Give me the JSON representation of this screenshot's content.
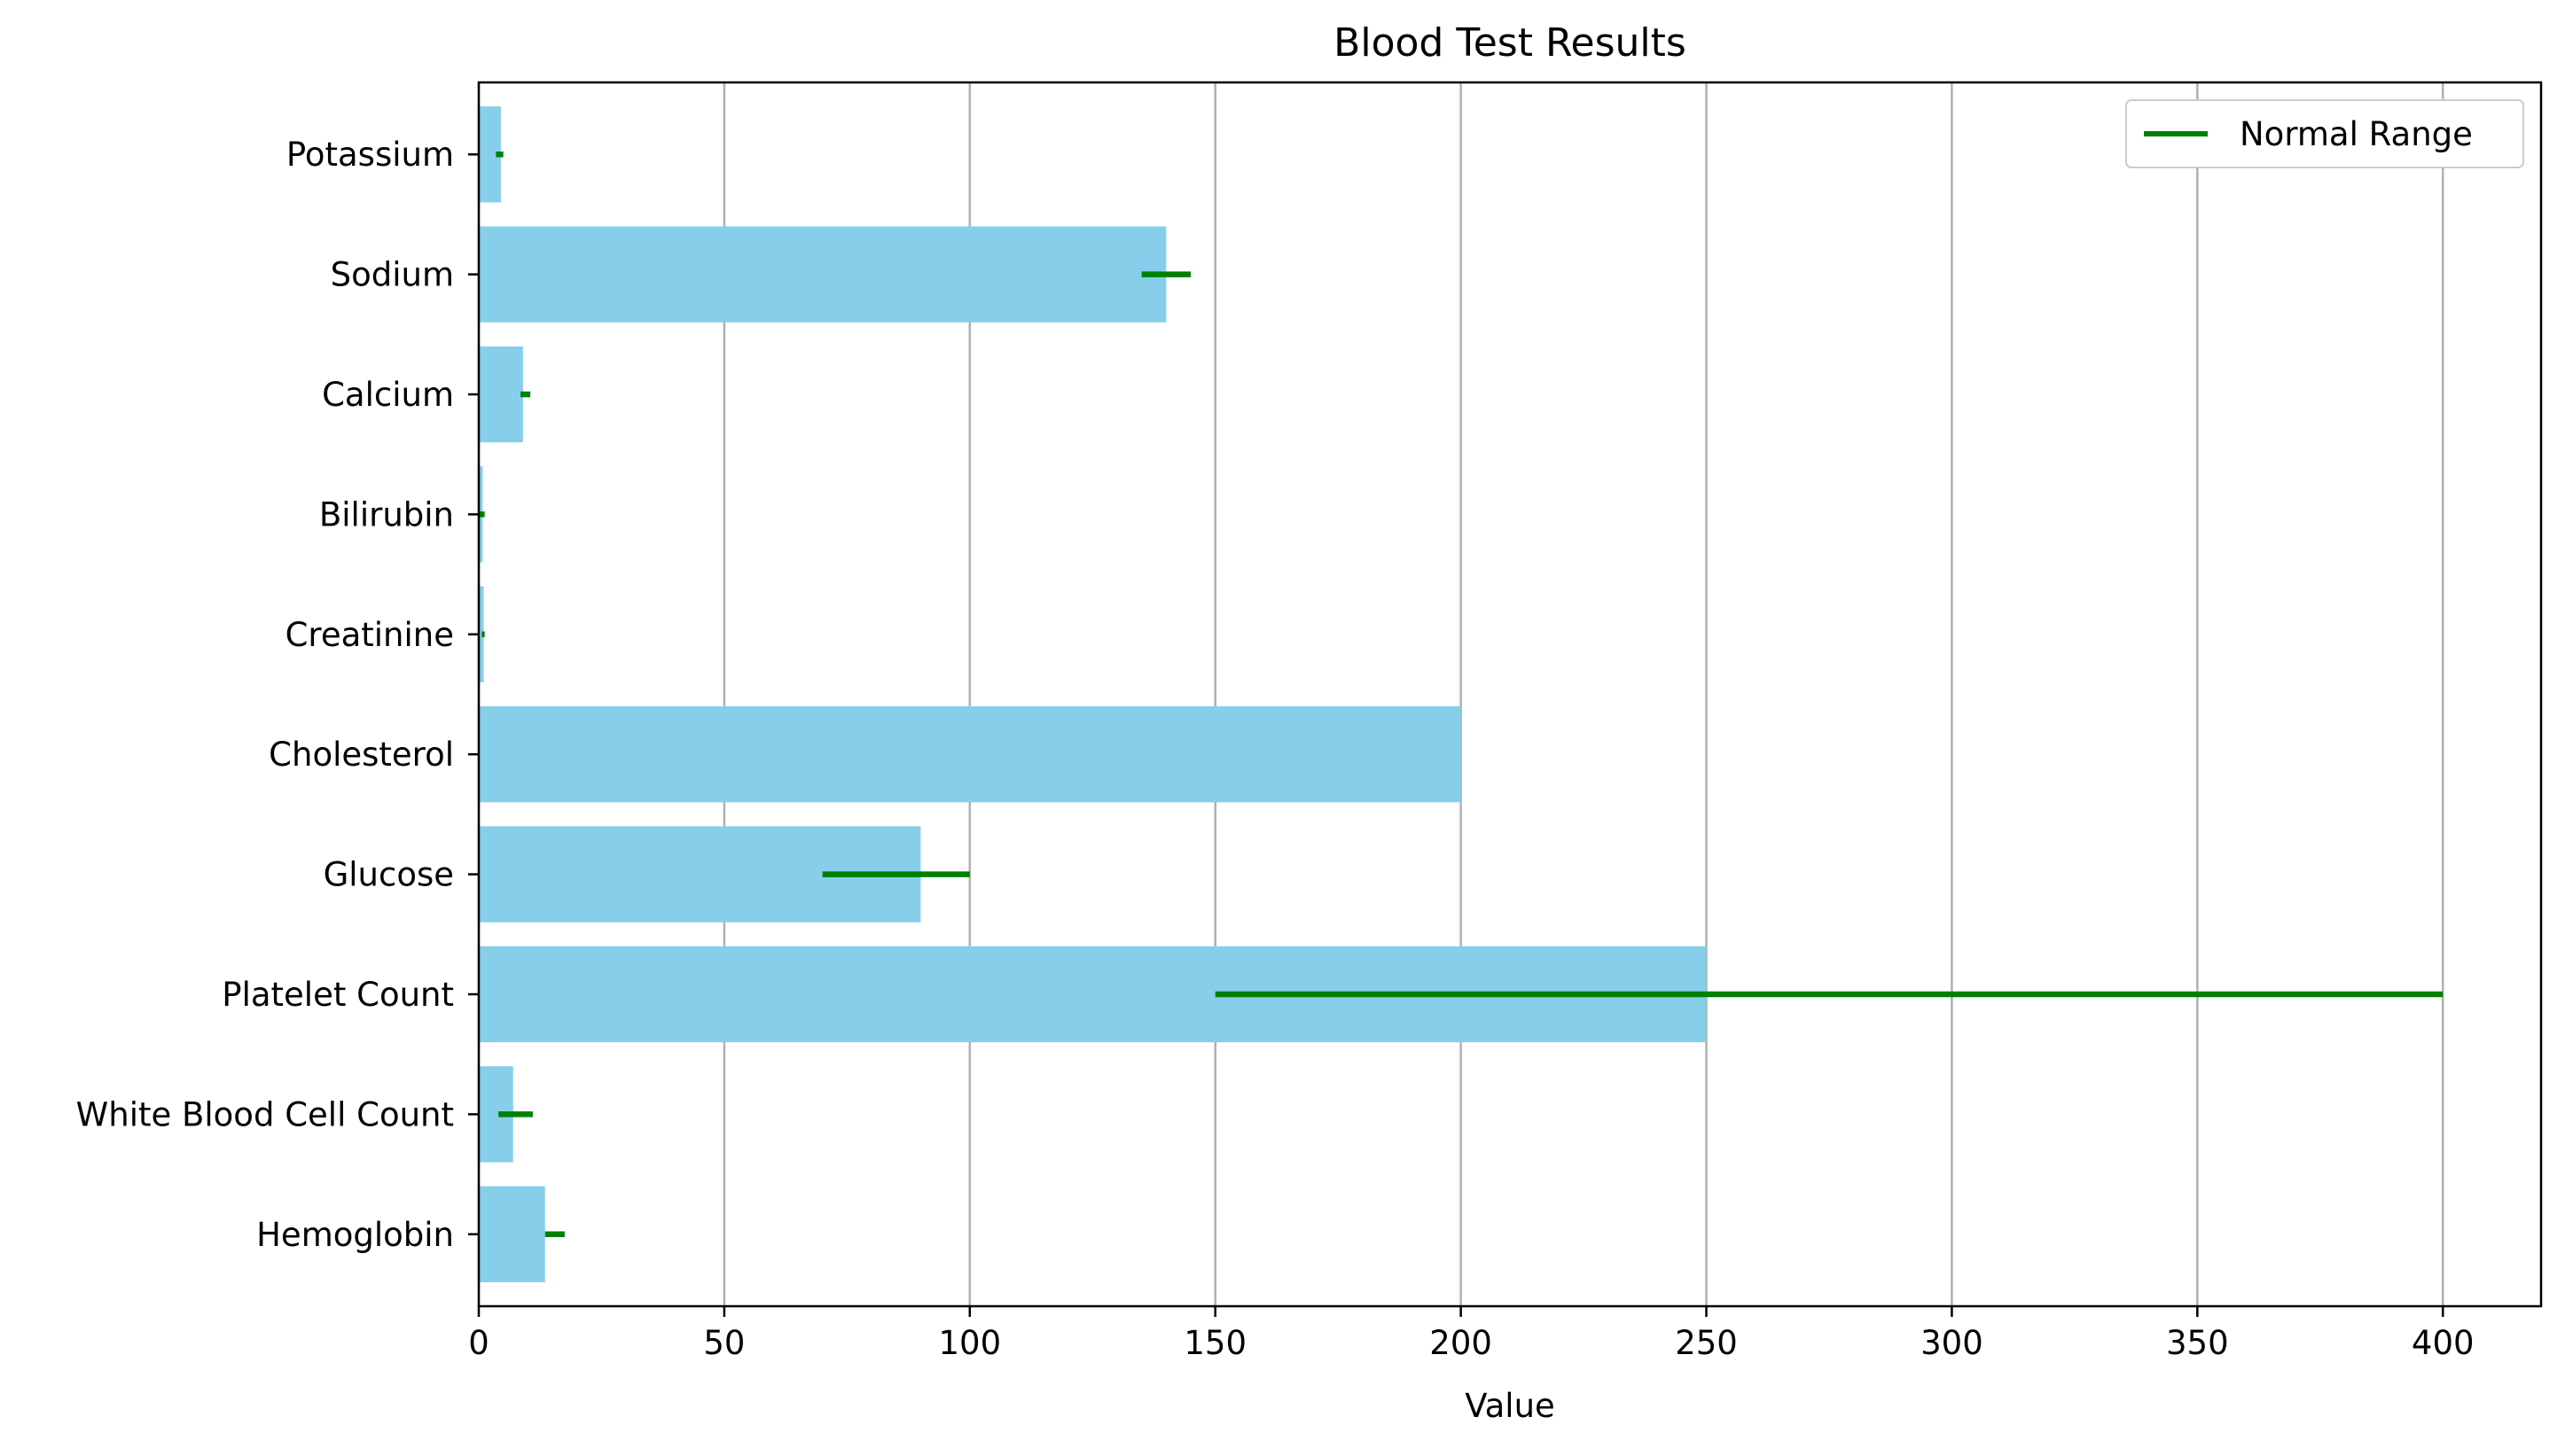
{
  "chart_data": {
    "type": "bar",
    "orientation": "horizontal",
    "title": "Blood Test Results",
    "xlabel": "Value",
    "ylabel": "",
    "xlim": [
      0,
      420
    ],
    "xticks": [
      0,
      50,
      100,
      150,
      200,
      250,
      300,
      350,
      400
    ],
    "grid": "x-axis vertical lines",
    "legend_placement": "top-right",
    "categories": [
      "Hemoglobin",
      "White Blood Cell Count",
      "Platelet Count",
      "Glucose",
      "Cholesterol",
      "Creatinine",
      "Bilirubin",
      "Calcium",
      "Sodium",
      "Potassium"
    ],
    "values": [
      13.5,
      7,
      250,
      90,
      200,
      1.0,
      0.8,
      9.0,
      140,
      4.5
    ],
    "normal_ranges": [
      [
        13.5,
        17.5
      ],
      [
        4,
        11
      ],
      [
        150,
        400
      ],
      [
        70,
        100
      ],
      [
        null,
        null
      ],
      [
        0.6,
        1.2
      ],
      [
        0.1,
        1.2
      ],
      [
        8.5,
        10.5
      ],
      [
        135,
        145
      ],
      [
        3.5,
        5.0
      ]
    ],
    "series": [
      {
        "name": "Normal Range",
        "kind": "range-line",
        "color": "#008000"
      }
    ],
    "bar_color": "#87ceeb"
  }
}
